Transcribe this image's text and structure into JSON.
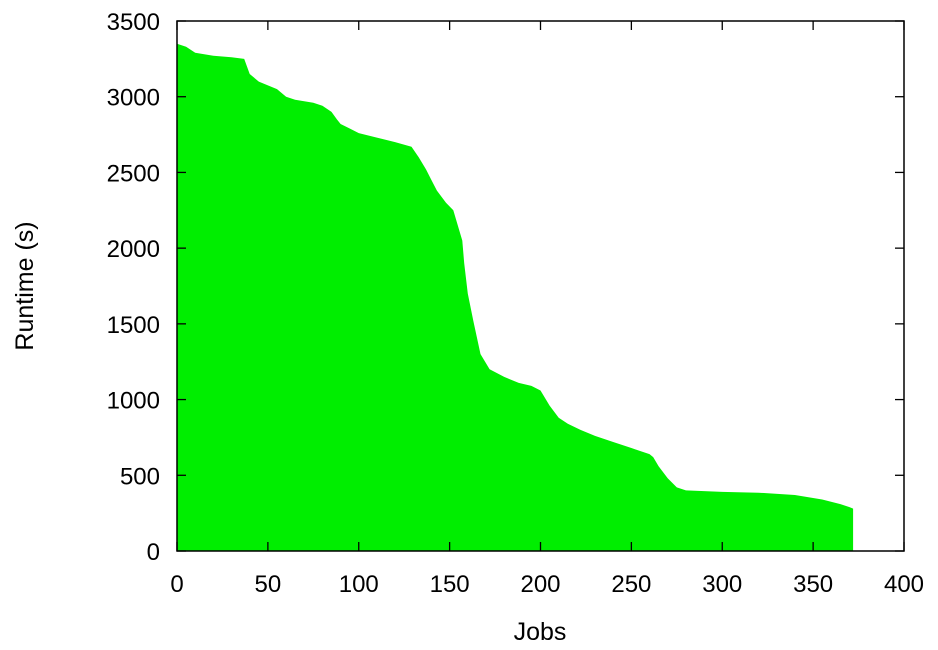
{
  "chart_data": {
    "type": "area",
    "title": "",
    "xlabel": "Jobs",
    "ylabel": "Runtime (s)",
    "xlim": [
      0,
      400
    ],
    "ylim": [
      0,
      3500
    ],
    "xticks": [
      0,
      50,
      100,
      150,
      200,
      250,
      300,
      350,
      400
    ],
    "yticks": [
      0,
      500,
      1000,
      1500,
      2000,
      2500,
      3000,
      3500
    ],
    "grid": false,
    "legend": "none",
    "fill_color": "#00ee00",
    "series": [
      {
        "x": [
          0,
          5,
          10,
          20,
          30,
          37,
          40,
          45,
          55,
          60,
          65,
          75,
          80,
          85,
          88,
          90,
          95,
          100,
          110,
          120,
          129,
          133,
          137,
          140,
          143,
          148,
          152,
          157,
          158,
          160,
          163,
          167,
          172,
          180,
          188,
          195,
          200,
          205,
          210,
          215,
          222,
          230,
          240,
          250,
          255,
          260,
          262,
          265,
          270,
          275,
          280,
          300,
          320,
          340,
          345,
          355,
          365,
          370,
          372
        ],
        "y": [
          3350,
          3330,
          3290,
          3270,
          3260,
          3250,
          3150,
          3100,
          3050,
          3000,
          2980,
          2960,
          2940,
          2900,
          2850,
          2820,
          2790,
          2760,
          2730,
          2700,
          2670,
          2600,
          2520,
          2450,
          2380,
          2300,
          2250,
          2050,
          1900,
          1700,
          1520,
          1300,
          1200,
          1150,
          1110,
          1090,
          1060,
          960,
          880,
          840,
          800,
          760,
          720,
          680,
          660,
          640,
          620,
          560,
          480,
          420,
          400,
          390,
          385,
          370,
          360,
          340,
          310,
          290,
          280
        ]
      }
    ]
  }
}
